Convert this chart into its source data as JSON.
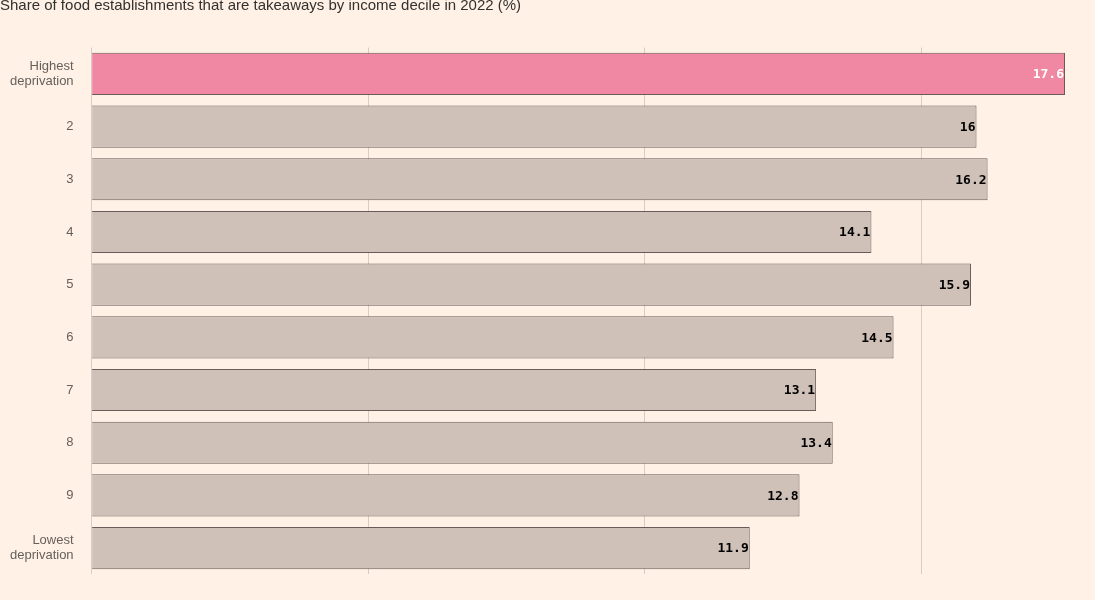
{
  "chart_data": {
    "type": "bar",
    "orientation": "horizontal",
    "title": "Share of food establishments that are takeaways by income decile in 2022 (%)",
    "categories": [
      "Highest deprivation",
      "2",
      "3",
      "4",
      "5",
      "6",
      "7",
      "8",
      "9",
      "Lowest deprivation"
    ],
    "values": [
      17.6,
      16,
      16.2,
      14.1,
      15.9,
      14.5,
      13.1,
      13.4,
      12.8,
      11.9
    ],
    "colors": [
      "#f087a3",
      "#d0c1b8",
      "#d0c1b8",
      "#d0c1b8",
      "#d0c1b8",
      "#d0c1b8",
      "#d0c1b8",
      "#d0c1b8",
      "#d0c1b8",
      "#d0c1b8"
    ],
    "xlim": [
      0,
      17.6
    ],
    "xticks": [
      {
        "value": 0,
        "label": null
      },
      {
        "value": 5,
        "label": null
      },
      {
        "value": 10,
        "label": null
      },
      {
        "value": 15,
        "label": null
      }
    ],
    "grid": "x",
    "tick_labels": "y",
    "data_labels": true,
    "legend": false
  }
}
